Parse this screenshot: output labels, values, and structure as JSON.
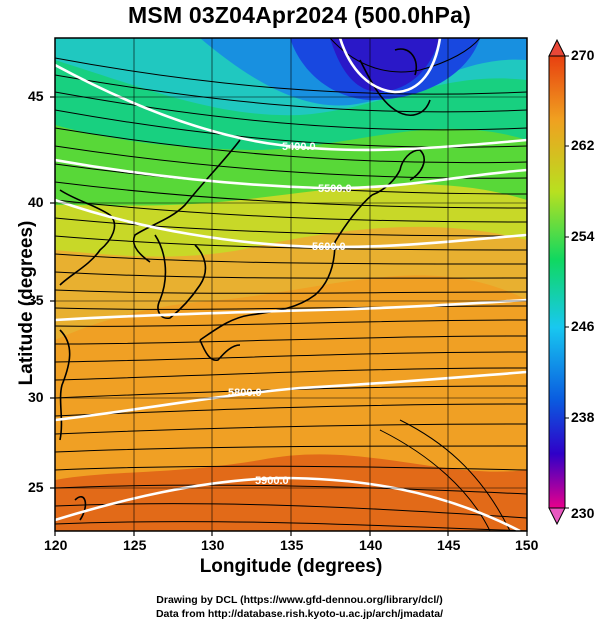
{
  "title": "MSM 03Z04Apr2024 (500.0hPa)",
  "map": {
    "xlabel": "Longitude (degrees)",
    "ylabel": "Latitude  (degrees)",
    "lon_ticks": [
      "120",
      "125",
      "130",
      "135",
      "140",
      "145",
      "150"
    ],
    "lat_ticks": [
      "45",
      "40",
      "35",
      "30",
      "25"
    ],
    "lon_range": [
      120,
      150
    ],
    "lat_range": [
      22.4,
      47.6
    ],
    "contour_labels": [
      "5400.0",
      "5500.0",
      "5600.0",
      "5800.0",
      "5900.0"
    ],
    "field": "temperature shading with geopotential height contours and wind streamlines"
  },
  "colorbar": {
    "labels": [
      "270",
      "262",
      "254",
      "246",
      "238",
      "230"
    ],
    "min": 230,
    "max": 270,
    "colors": [
      "#e8008c",
      "#2f00c8",
      "#0a5ce0",
      "#18c8f0",
      "#10d860",
      "#b8e020",
      "#f0a020",
      "#e84010"
    ]
  },
  "credits": {
    "line1": "Drawing by DCL (https://www.gfd-dennou.org/library/dcl/)",
    "line2": "Data from http://database.rish.kyoto-u.ac.jp/arch/jmadata/"
  }
}
